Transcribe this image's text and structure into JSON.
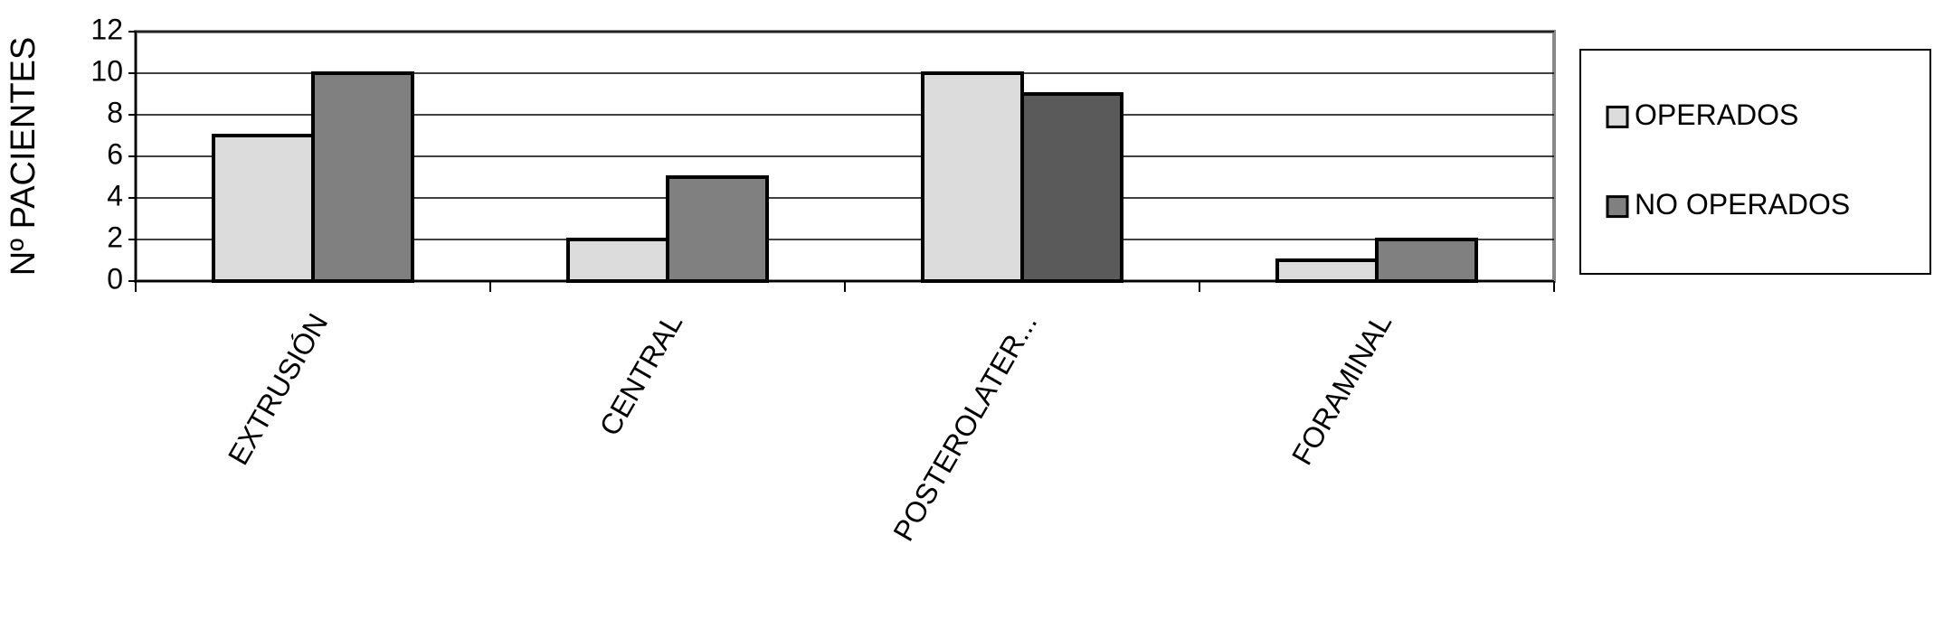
{
  "chart_data": {
    "type": "bar",
    "y_label": "Nº PACIENTES",
    "categories": [
      "EXTRUSIÓN",
      "CENTRAL",
      "POSTEROLATER...",
      "FORAMINAL"
    ],
    "series": [
      {
        "name": "OPERADOS",
        "color": "#dcdcdc",
        "values": [
          7,
          2,
          10,
          1
        ]
      },
      {
        "name": "NO OPERADOS",
        "color": "#808080",
        "point_colors": [
          "#808080",
          "#808080",
          "#5a5a5a",
          "#808080"
        ],
        "values": [
          10,
          5,
          9,
          2
        ]
      }
    ],
    "ylim": [
      0,
      12
    ],
    "yticks": [
      0,
      2,
      4,
      6,
      8,
      10,
      12
    ],
    "grid": true,
    "legend": "right"
  }
}
